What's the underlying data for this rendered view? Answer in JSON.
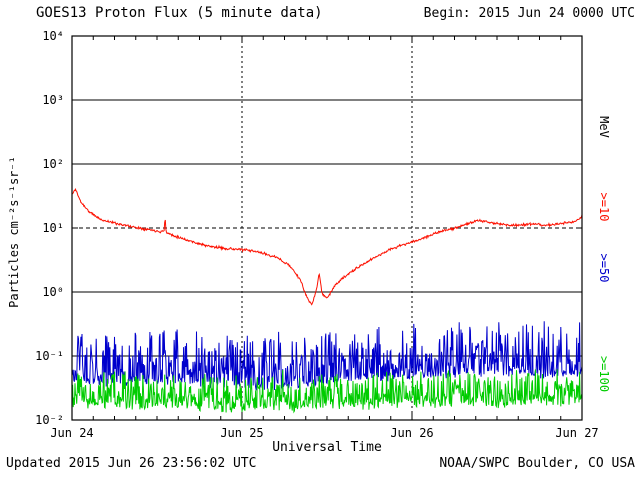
{
  "header": {
    "title": "GOES13 Proton Flux (5 minute data)",
    "begin": "Begin: 2015 Jun 24 0000 UTC"
  },
  "footer": {
    "updated": "Updated 2015 Jun 26 23:56:02 UTC",
    "source": "NOAA/SWPC Boulder, CO USA"
  },
  "axes": {
    "y": {
      "label": "Particles cm⁻²s⁻¹sr⁻¹",
      "ticks": [
        "10⁴",
        "10³",
        "10²",
        "10¹",
        "10⁰",
        "10⁻¹",
        "10⁻²"
      ]
    },
    "x": {
      "label": "Universal Time",
      "ticks": [
        "Jun 24",
        "Jun 25",
        "Jun 26",
        "Jun 27"
      ]
    },
    "right": {
      "unit": "MeV",
      "labels": [
        ">=10",
        ">=50",
        ">=100"
      ]
    }
  },
  "chart_data": {
    "type": "line",
    "title": "GOES13 Proton Flux (5 minute data)",
    "xlabel": "Universal Time",
    "ylabel": "Particles cm⁻²s⁻¹sr⁻¹",
    "x_range_days": [
      0,
      3
    ],
    "x_tick_labels": [
      "Jun 24",
      "Jun 25",
      "Jun 26",
      "Jun 27"
    ],
    "y_log_range": [
      -2,
      4
    ],
    "y_tick_labels": [
      "10⁴",
      "10³",
      "10²",
      "10¹",
      "10⁰",
      "10⁻¹",
      "10⁻²"
    ],
    "cadence_minutes": 5,
    "grid": {
      "hlines_solid_log": [
        3,
        2,
        0,
        -1
      ],
      "hlines_dashed_log": [
        1
      ],
      "vlines_dashed_days": [
        1,
        2
      ],
      "x_minor_tick_hours": 3
    },
    "series": [
      {
        "name": ">=10 MeV",
        "color": "#fd1000",
        "seed": 11,
        "noise": {
          "type": "jitter",
          "sigma": 0.028
        },
        "trend": [
          [
            0,
            33
          ],
          [
            0.02,
            41
          ],
          [
            0.05,
            26
          ],
          [
            0.1,
            18
          ],
          [
            0.17,
            13.5
          ],
          [
            0.25,
            12
          ],
          [
            0.35,
            10.5
          ],
          [
            0.45,
            9.5
          ],
          [
            0.52,
            8.8
          ],
          [
            0.542,
            9
          ],
          [
            0.547,
            16
          ],
          [
            0.553,
            8.5
          ],
          [
            0.6,
            7.6
          ],
          [
            0.7,
            6.2
          ],
          [
            0.8,
            5.2
          ],
          [
            0.9,
            4.8
          ],
          [
            1.0,
            4.6
          ],
          [
            1.1,
            4.2
          ],
          [
            1.2,
            3.5
          ],
          [
            1.28,
            2.6
          ],
          [
            1.34,
            1.6
          ],
          [
            1.38,
            0.85
          ],
          [
            1.41,
            0.62
          ],
          [
            1.435,
            1.0
          ],
          [
            1.455,
            2.0
          ],
          [
            1.47,
            0.95
          ],
          [
            1.5,
            0.8
          ],
          [
            1.55,
            1.3
          ],
          [
            1.6,
            1.7
          ],
          [
            1.67,
            2.3
          ],
          [
            1.74,
            3.0
          ],
          [
            1.8,
            3.7
          ],
          [
            1.87,
            4.6
          ],
          [
            1.94,
            5.4
          ],
          [
            2.0,
            6.0
          ],
          [
            2.08,
            7.2
          ],
          [
            2.15,
            8.5
          ],
          [
            2.22,
            9.5
          ],
          [
            2.3,
            11
          ],
          [
            2.38,
            13
          ],
          [
            2.44,
            12.5
          ],
          [
            2.52,
            11.5
          ],
          [
            2.6,
            11
          ],
          [
            2.7,
            11.5
          ],
          [
            2.8,
            11
          ],
          [
            2.9,
            12
          ],
          [
            2.96,
            12.5
          ],
          [
            2.99,
            14.5
          ],
          [
            3.0,
            15.5
          ]
        ]
      },
      {
        "name": ">=50 MeV",
        "color": "#0000cc",
        "seed": 23,
        "noise": {
          "type": "spiky",
          "spread": 0.8,
          "skew": 2.2,
          "down": 0.1,
          "spike_prob": 0.012,
          "spike": 0.12
        },
        "trend": [
          [
            0,
            0.05
          ],
          [
            0.1,
            0.045
          ],
          [
            0.2,
            0.04
          ],
          [
            0.5,
            0.045
          ],
          [
            0.8,
            0.04
          ],
          [
            1.1,
            0.035
          ],
          [
            1.4,
            0.04
          ],
          [
            1.6,
            0.05
          ],
          [
            1.9,
            0.05
          ],
          [
            2.2,
            0.055
          ],
          [
            2.5,
            0.06
          ],
          [
            2.8,
            0.055
          ],
          [
            3,
            0.06
          ]
        ]
      },
      {
        "name": ">=100 MeV",
        "color": "#00cc00",
        "seed": 37,
        "noise": {
          "type": "spiky",
          "spread": 0.5,
          "skew": 2.0,
          "down": 0.12,
          "spike_prob": 0.01,
          "spike": 0.1
        },
        "trend": [
          [
            0,
            0.02
          ],
          [
            0.5,
            0.018
          ],
          [
            1,
            0.017
          ],
          [
            1.5,
            0.018
          ],
          [
            2,
            0.02
          ],
          [
            2.5,
            0.02
          ],
          [
            3,
            0.022
          ]
        ]
      }
    ]
  }
}
